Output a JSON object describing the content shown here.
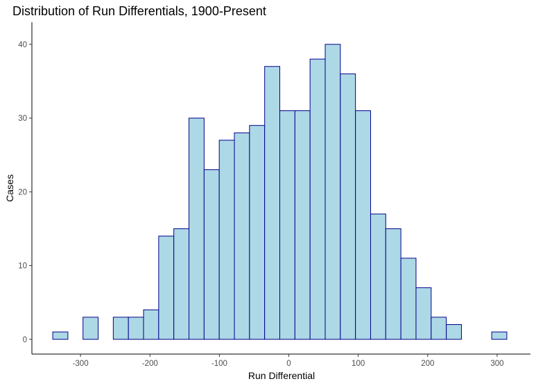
{
  "chart_data": {
    "type": "bar",
    "title": "Distribution of Run Differentials, 1900-Present",
    "xlabel": "Run Differential",
    "ylabel": "Cases",
    "bin_width": 21.8,
    "bin_starts": [
      -340,
      -318.2,
      -296.4,
      -274.6,
      -252.8,
      -231,
      -209.2,
      -187.4,
      -165.6,
      -143.8,
      -122,
      -100.2,
      -78.4,
      -56.6,
      -34.8,
      -13,
      8.8,
      30.6,
      52.4,
      74.2,
      96,
      117.8,
      139.6,
      161.4,
      183.2,
      205,
      226.8,
      248.6,
      270.4,
      292.2
    ],
    "values": [
      1,
      0,
      3,
      0,
      3,
      3,
      4,
      14,
      15,
      30,
      23,
      27,
      28,
      29,
      37,
      31,
      31,
      38,
      40,
      36,
      31,
      17,
      15,
      11,
      7,
      3,
      2,
      0,
      0,
      1
    ],
    "xlim": [
      -370,
      348
    ],
    "ylim": [
      -2,
      43
    ],
    "x_ticks": [
      -300,
      -200,
      -100,
      0,
      100,
      200,
      300
    ],
    "y_ticks": [
      0,
      10,
      20,
      30,
      40
    ],
    "x_tick_labels": [
      "-300",
      "-200",
      "-100",
      "0",
      "100",
      "200",
      "300"
    ],
    "y_tick_labels": [
      "0",
      "10",
      "20",
      "30",
      "40"
    ],
    "fill_color": "#add8e6",
    "outline_color": "#00008b",
    "grid": false
  }
}
